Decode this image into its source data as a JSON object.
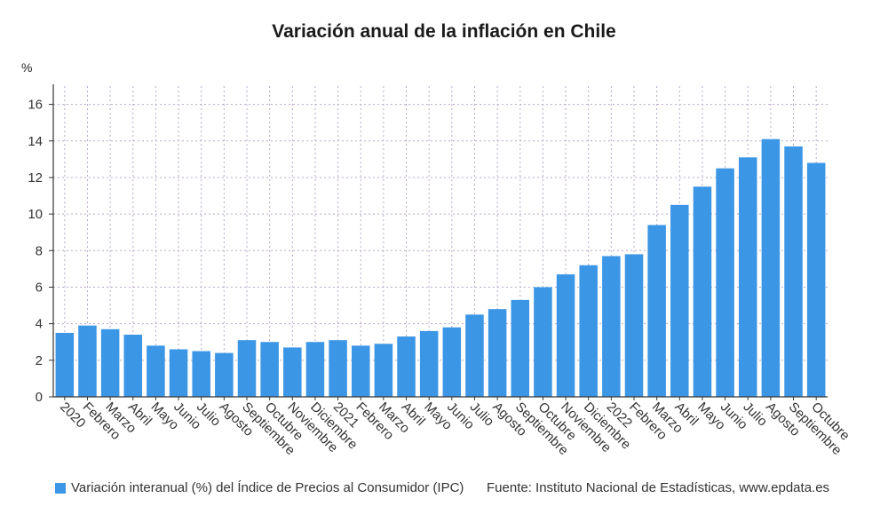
{
  "header": {
    "title": "Variación anual de la inflación en Chile"
  },
  "legend": {
    "label": "Variación interanual (%) del Índice de Precios al Consumidor (IPC)"
  },
  "footer": {
    "source": "Fuente: Instituto Nacional de Estadísticas, www.epdata.es"
  },
  "colors": {
    "bar": "#3b96e6",
    "grid": "#b9a8c9",
    "axis": "#333333"
  },
  "chart_data": {
    "type": "bar",
    "ylabel": "%",
    "ylim": [
      0,
      17
    ],
    "yticks": [
      0,
      2,
      4,
      6,
      8,
      10,
      12,
      14,
      16
    ],
    "grid": true,
    "legend_position": "bottom-left",
    "categories": [
      "2020",
      "Febrero",
      "Marzo",
      "Abril",
      "Mayo",
      "Junio",
      "Julio",
      "Agosto",
      "Septiembre",
      "Octubre",
      "Noviembre",
      "Diciembre",
      "2021",
      "Febrero",
      "Marzo",
      "Abril",
      "Mayo",
      "Junio",
      "Julio",
      "Agosto",
      "Septiembre",
      "Octubre",
      "Noviembre",
      "Diciembre",
      "2022",
      "Febrero",
      "Marzo",
      "Abril",
      "Mayo",
      "Junio",
      "Julio",
      "Agosto",
      "Septiembre",
      "Octubre"
    ],
    "series": [
      {
        "name": "Variación interanual (%) del Índice de Precios al Consumidor (IPC)",
        "values": [
          3.5,
          3.9,
          3.7,
          3.4,
          2.8,
          2.6,
          2.5,
          2.4,
          3.1,
          3.0,
          2.7,
          3.0,
          3.1,
          2.8,
          2.9,
          3.3,
          3.6,
          3.8,
          4.5,
          4.8,
          5.3,
          6.0,
          6.7,
          7.2,
          7.7,
          7.8,
          9.4,
          10.5,
          11.5,
          12.5,
          13.1,
          14.1,
          13.7,
          12.8
        ]
      }
    ]
  }
}
